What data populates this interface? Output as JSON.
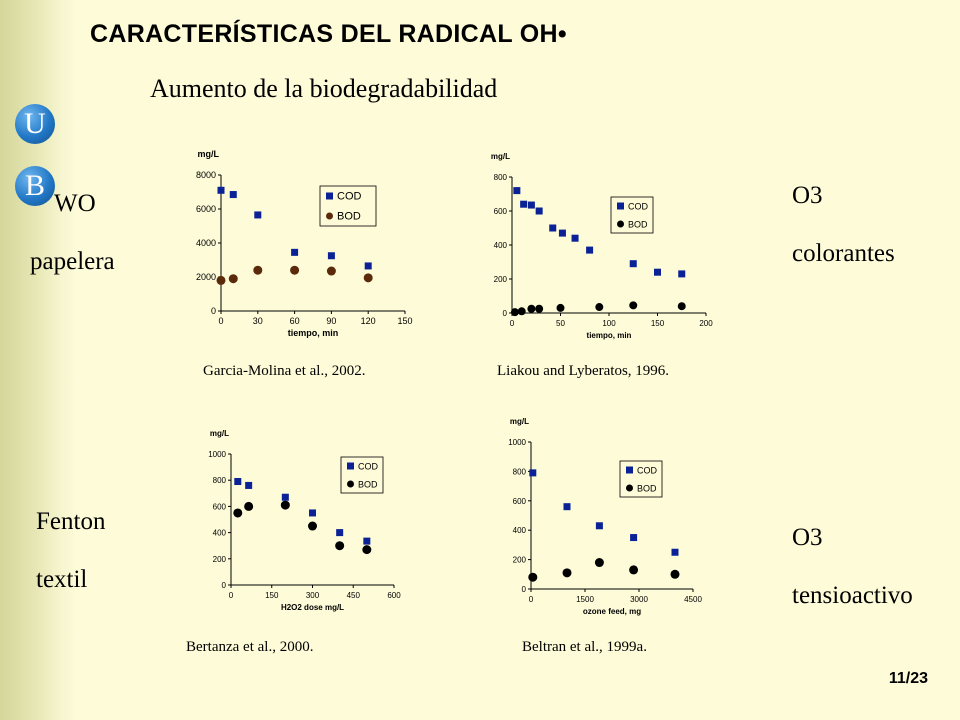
{
  "page": {
    "title": "CARACTERÍSTICAS DEL RADICAL OH•",
    "subtitle": "Aumento de la biodegradabilidad",
    "page_number": "11/23",
    "logo_letters": [
      "U",
      "B"
    ],
    "labels": {
      "wo_1": "WO",
      "wo_2": "papelera",
      "o3a_1": "O3",
      "o3a_2": "colorantes",
      "fenton_1": "Fenton",
      "fenton_2": "textil",
      "o3b_1": "O3",
      "o3b_2": "tensioactivo"
    },
    "colors": {
      "background": "#fdfbd8",
      "cod": "#0a2296",
      "bod_brown": "#5a2a0a",
      "bod_black": "#000000",
      "logo": "#2278c6"
    }
  },
  "chart_data": [
    {
      "type": "scatter",
      "ylabel": "mg/L",
      "xlabel": "tiempo, min",
      "source": "Garcia-Molina et al., 2002.",
      "xlim": [
        0,
        150
      ],
      "ylim": [
        0,
        8000
      ],
      "xticks": [
        "0",
        "30",
        "60",
        "90",
        "120",
        "150"
      ],
      "yticks": [
        "0",
        "2000",
        "4000",
        "6000",
        "8000"
      ],
      "legend_position": "top-right",
      "series": [
        {
          "name": "COD",
          "marker": "square",
          "color": "#0a2296",
          "x": [
            0,
            10,
            30,
            60,
            90,
            120
          ],
          "y": [
            7100,
            6850,
            5650,
            3450,
            3250,
            2650
          ]
        },
        {
          "name": "BOD",
          "marker": "circle",
          "color": "#5a2a0a",
          "x": [
            0,
            10,
            30,
            60,
            90,
            120
          ],
          "y": [
            1800,
            1900,
            2400,
            2400,
            2350,
            1950
          ]
        }
      ]
    },
    {
      "type": "scatter",
      "ylabel": "mg/L",
      "xlabel": "tiempo, min",
      "source": "Liakou and Lyberatos, 1996.",
      "xlim": [
        0,
        200
      ],
      "ylim": [
        0,
        800
      ],
      "xticks": [
        "0",
        "50",
        "100",
        "150",
        "200"
      ],
      "yticks": [
        "0",
        "200",
        "400",
        "600",
        "800"
      ],
      "legend_position": "top-right",
      "series": [
        {
          "name": "COD",
          "marker": "square",
          "color": "#0a2296",
          "x": [
            5,
            12,
            20,
            28,
            42,
            52,
            65,
            80,
            125,
            150,
            175
          ],
          "y": [
            720,
            640,
            635,
            600,
            500,
            470,
            440,
            370,
            290,
            240,
            230
          ]
        },
        {
          "name": "BOD",
          "marker": "circle",
          "color": "#000000",
          "x": [
            3,
            10,
            20,
            28,
            50,
            90,
            125,
            175
          ],
          "y": [
            5,
            10,
            25,
            25,
            30,
            35,
            45,
            40
          ]
        }
      ]
    },
    {
      "type": "scatter",
      "ylabel": "mg/L",
      "xlabel": "H2O2 dose mg/L",
      "source": "Bertanza et al., 2000.",
      "xlim": [
        0,
        600
      ],
      "ylim": [
        0,
        1000
      ],
      "xticks": [
        "0",
        "150",
        "300",
        "450",
        "600"
      ],
      "yticks": [
        "0",
        "200",
        "400",
        "600",
        "800",
        "1000"
      ],
      "legend_position": "top-right",
      "series": [
        {
          "name": "COD",
          "marker": "square",
          "color": "#0a2296",
          "x": [
            25,
            65,
            200,
            300,
            400,
            500
          ],
          "y": [
            790,
            760,
            670,
            550,
            400,
            335
          ]
        },
        {
          "name": "BOD",
          "marker": "circle",
          "color": "#000000",
          "x": [
            25,
            65,
            200,
            300,
            400,
            500
          ],
          "y": [
            550,
            600,
            610,
            450,
            300,
            270
          ]
        }
      ]
    },
    {
      "type": "scatter",
      "ylabel": "mg/L",
      "xlabel": "ozone feed, mg",
      "source": "Beltran et al., 1999a.",
      "xlim": [
        0,
        4500
      ],
      "ylim": [
        0,
        1000
      ],
      "xticks": [
        "0",
        "1500",
        "3000",
        "4500"
      ],
      "yticks": [
        "0",
        "200",
        "400",
        "600",
        "800",
        "1000"
      ],
      "legend_position": "top-right",
      "series": [
        {
          "name": "COD",
          "marker": "square",
          "color": "#0a2296",
          "x": [
            50,
            1000,
            1900,
            2850,
            4000
          ],
          "y": [
            790,
            560,
            430,
            350,
            250
          ]
        },
        {
          "name": "BOD",
          "marker": "circle",
          "color": "#000000",
          "x": [
            50,
            1000,
            1900,
            2850,
            4000
          ],
          "y": [
            80,
            110,
            180,
            130,
            100
          ]
        }
      ]
    }
  ]
}
